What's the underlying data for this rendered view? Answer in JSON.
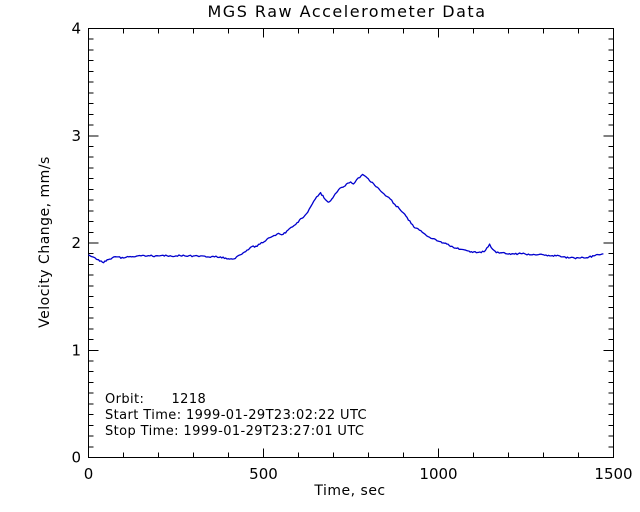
{
  "figure": {
    "background": "#ffffff",
    "text_color": "#000000"
  },
  "chart_data": {
    "type": "line",
    "title": "MGS Raw Accelerometer Data",
    "xlabel": "Time, sec",
    "ylabel": "Velocity Change, mm/s",
    "xlim": [
      0,
      1500
    ],
    "ylim": [
      0,
      4
    ],
    "x_ticks": [
      0,
      500,
      1000,
      1500
    ],
    "y_ticks": [
      0,
      1,
      2,
      3,
      4
    ],
    "x_minor_step": 100,
    "y_minor_step": 0.1,
    "grid": false,
    "legend": null,
    "line_color": "#0000cd",
    "axis_color": "#000000",
    "annotations": [
      "Orbit:      1218",
      "Start Time: 1999-01-29T23:02:22 UTC",
      "Stop Time: 1999-01-29T23:27:01 UTC"
    ],
    "annotation_values": {
      "orbit": "1218",
      "start_time": "1999-01-29T23:02:22 UTC",
      "stop_time": "1999-01-29T23:27:01 UTC"
    },
    "series": [
      {
        "name": "velocity_change_mm_s",
        "points": [
          [
            0,
            1.89
          ],
          [
            12,
            1.87
          ],
          [
            22,
            1.85
          ],
          [
            32,
            1.83
          ],
          [
            40,
            1.82
          ],
          [
            50,
            1.83
          ],
          [
            60,
            1.85
          ],
          [
            72,
            1.87
          ],
          [
            85,
            1.87
          ],
          [
            100,
            1.86
          ],
          [
            115,
            1.87
          ],
          [
            130,
            1.87
          ],
          [
            150,
            1.88
          ],
          [
            175,
            1.88
          ],
          [
            200,
            1.88
          ],
          [
            225,
            1.88
          ],
          [
            250,
            1.88
          ],
          [
            275,
            1.88
          ],
          [
            300,
            1.88
          ],
          [
            320,
            1.88
          ],
          [
            340,
            1.87
          ],
          [
            360,
            1.87
          ],
          [
            377,
            1.87
          ],
          [
            392,
            1.86
          ],
          [
            403,
            1.85
          ],
          [
            412,
            1.85
          ],
          [
            423,
            1.87
          ],
          [
            434,
            1.89
          ],
          [
            449,
            1.92
          ],
          [
            463,
            1.96
          ],
          [
            478,
            1.97
          ],
          [
            490,
            1.99
          ],
          [
            506,
            2.02
          ],
          [
            518,
            2.05
          ],
          [
            530,
            2.07
          ],
          [
            543,
            2.09
          ],
          [
            556,
            2.08
          ],
          [
            570,
            2.12
          ],
          [
            583,
            2.15
          ],
          [
            596,
            2.19
          ],
          [
            610,
            2.23
          ],
          [
            622,
            2.27
          ],
          [
            635,
            2.34
          ],
          [
            648,
            2.41
          ],
          [
            663,
            2.47
          ],
          [
            673,
            2.42
          ],
          [
            685,
            2.38
          ],
          [
            695,
            2.41
          ],
          [
            705,
            2.46
          ],
          [
            715,
            2.5
          ],
          [
            727,
            2.52
          ],
          [
            737,
            2.55
          ],
          [
            749,
            2.57
          ],
          [
            757,
            2.55
          ],
          [
            766,
            2.59
          ],
          [
            775,
            2.61
          ],
          [
            783,
            2.64
          ],
          [
            792,
            2.62
          ],
          [
            803,
            2.58
          ],
          [
            815,
            2.55
          ],
          [
            825,
            2.52
          ],
          [
            836,
            2.48
          ],
          [
            849,
            2.44
          ],
          [
            862,
            2.41
          ],
          [
            875,
            2.36
          ],
          [
            888,
            2.32
          ],
          [
            900,
            2.28
          ],
          [
            910,
            2.24
          ],
          [
            922,
            2.18
          ],
          [
            933,
            2.14
          ],
          [
            945,
            2.12
          ],
          [
            958,
            2.09
          ],
          [
            970,
            2.06
          ],
          [
            983,
            2.04
          ],
          [
            996,
            2.02
          ],
          [
            1010,
            2.0
          ],
          [
            1024,
            1.99
          ],
          [
            1038,
            1.97
          ],
          [
            1052,
            1.95
          ],
          [
            1066,
            1.94
          ],
          [
            1080,
            1.93
          ],
          [
            1094,
            1.92
          ],
          [
            1108,
            1.91
          ],
          [
            1122,
            1.91
          ],
          [
            1134,
            1.93
          ],
          [
            1146,
            1.99
          ],
          [
            1155,
            1.94
          ],
          [
            1165,
            1.91
          ],
          [
            1178,
            1.91
          ],
          [
            1192,
            1.9
          ],
          [
            1210,
            1.9
          ],
          [
            1228,
            1.9
          ],
          [
            1246,
            1.9
          ],
          [
            1264,
            1.89
          ],
          [
            1282,
            1.89
          ],
          [
            1300,
            1.89
          ],
          [
            1318,
            1.88
          ],
          [
            1336,
            1.88
          ],
          [
            1354,
            1.87
          ],
          [
            1372,
            1.86
          ],
          [
            1388,
            1.86
          ],
          [
            1402,
            1.86
          ],
          [
            1416,
            1.86
          ],
          [
            1430,
            1.87
          ],
          [
            1444,
            1.88
          ],
          [
            1458,
            1.89
          ],
          [
            1471,
            1.9
          ]
        ]
      }
    ]
  }
}
